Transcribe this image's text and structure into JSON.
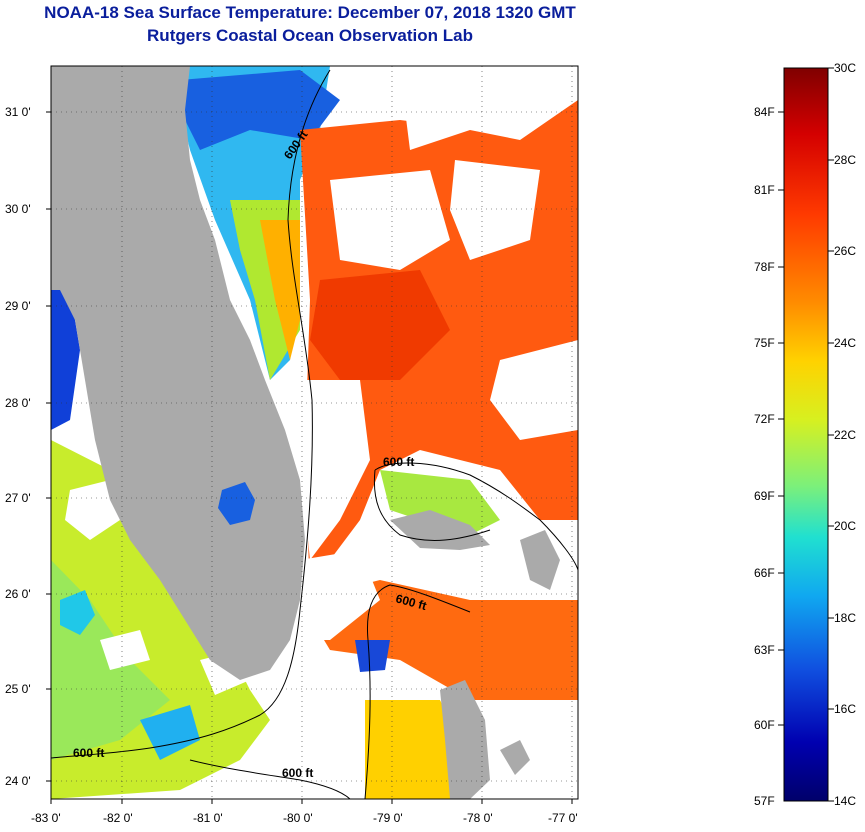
{
  "header": {
    "title": "NOAA-18 Sea Surface Temperature:  December 07, 2018 1320 GMT",
    "subtitle": "Rutgers Coastal Ocean Observation Lab"
  },
  "axes": {
    "lat_ticks": [
      "31 0'",
      "30 0'",
      "29 0'",
      "28 0'",
      "27 0'",
      "26 0'",
      "25 0'",
      "24 0'"
    ],
    "lon_ticks": [
      "-83 0'",
      "-82 0'",
      "-81 0'",
      "-80 0'",
      "-79 0'",
      "-78 0'",
      "-77 0'"
    ]
  },
  "contours": {
    "label": "600 ft"
  },
  "colorbar": {
    "celsius": [
      "30C",
      "28C",
      "26C",
      "24C",
      "22C",
      "20C",
      "18C",
      "16C",
      "14C"
    ],
    "fahrenheit": [
      "84F",
      "81F",
      "78F",
      "75F",
      "72F",
      "69F",
      "66F",
      "63F",
      "60F",
      "57F"
    ],
    "colors": [
      "#800000",
      "#d40000",
      "#ff3a00",
      "#ff8c00",
      "#ffd200",
      "#d7f020",
      "#7cf07a",
      "#20e0d0",
      "#10a8f0",
      "#1050e0",
      "#0000b0",
      "#00006a"
    ]
  },
  "colors": {
    "title": "#0a1e9c",
    "land": "#aaaaaa",
    "cloud": "#ffffff"
  }
}
